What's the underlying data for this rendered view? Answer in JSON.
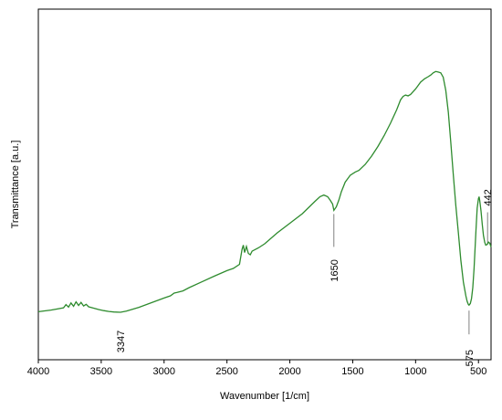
{
  "chart_data": {
    "type": "line",
    "title": "",
    "xlabel": "Wavenumber [1/cm]",
    "ylabel": "Transmittance [a.u.]",
    "x_reversed": true,
    "xlim": [
      4000,
      400
    ],
    "ylim": [
      0,
      100
    ],
    "grid": false,
    "y_tick_labels_shown": false,
    "x_ticks": [
      4000,
      3500,
      3000,
      2500,
      2000,
      1500,
      1000,
      500
    ],
    "line_color": "#2e8b2e",
    "series": [
      {
        "x": [
          4000,
          3900,
          3800,
          3780,
          3760,
          3740,
          3720,
          3700,
          3680,
          3660,
          3640,
          3620,
          3600,
          3560,
          3520,
          3480,
          3440,
          3400,
          3347,
          3300,
          3200,
          3100,
          3000,
          2950,
          2920,
          2900,
          2850,
          2800,
          2700,
          2600,
          2500,
          2450,
          2400,
          2380,
          2370,
          2360,
          2345,
          2330,
          2315,
          2300,
          2250,
          2200,
          2100,
          2000,
          1900,
          1800,
          1760,
          1730,
          1700,
          1680,
          1660,
          1650,
          1630,
          1610,
          1590,
          1560,
          1520,
          1480,
          1450,
          1400,
          1350,
          1300,
          1250,
          1200,
          1150,
          1120,
          1100,
          1080,
          1060,
          1040,
          1000,
          960,
          930,
          900,
          880,
          860,
          840,
          820,
          800,
          780,
          760,
          740,
          720,
          700,
          680,
          660,
          640,
          620,
          600,
          590,
          580,
          575,
          565,
          555,
          545,
          535,
          520,
          510,
          500,
          495,
          490,
          480,
          470,
          460,
          450,
          442,
          430,
          420,
          410,
          400
        ],
        "y": [
          6.2,
          6.8,
          7.6,
          8.8,
          7.9,
          9.4,
          8.2,
          9.8,
          8.5,
          9.6,
          8.3,
          8.9,
          8.0,
          7.5,
          7.0,
          6.6,
          6.3,
          6.1,
          6.0,
          6.4,
          7.8,
          9.5,
          11.2,
          12.0,
          13.0,
          13.2,
          13.8,
          15.0,
          17.1,
          19.2,
          21.2,
          22.0,
          23.5,
          29.0,
          30.5,
          27.8,
          30.0,
          27.5,
          27.0,
          28.3,
          29.5,
          31.0,
          35.0,
          38.5,
          42.0,
          46.5,
          48.2,
          48.8,
          48.2,
          47.0,
          45.5,
          43.2,
          44.5,
          47.0,
          50.0,
          53.5,
          56.0,
          57.2,
          57.8,
          60.0,
          63.0,
          66.5,
          70.5,
          75.0,
          80.0,
          83.5,
          84.8,
          85.3,
          85.0,
          85.5,
          87.5,
          90.0,
          91.2,
          92.0,
          92.6,
          93.4,
          93.9,
          93.7,
          93.4,
          91.8,
          87.0,
          79.0,
          68.0,
          56.0,
          45.0,
          35.0,
          25.0,
          17.0,
          12.0,
          10.0,
          8.8,
          8.6,
          9.2,
          11.0,
          15.0,
          22.0,
          36.0,
          44.0,
          47.5,
          48.2,
          46.8,
          43.0,
          38.0,
          34.0,
          31.5,
          30.5,
          30.8,
          31.6,
          31.2,
          29.8
        ]
      }
    ],
    "annotations": [
      {
        "x": 3347,
        "label": "3347"
      },
      {
        "x": 1650,
        "label": "1650"
      },
      {
        "x": 575,
        "label": "575"
      },
      {
        "x": 442,
        "label": "442"
      }
    ]
  }
}
